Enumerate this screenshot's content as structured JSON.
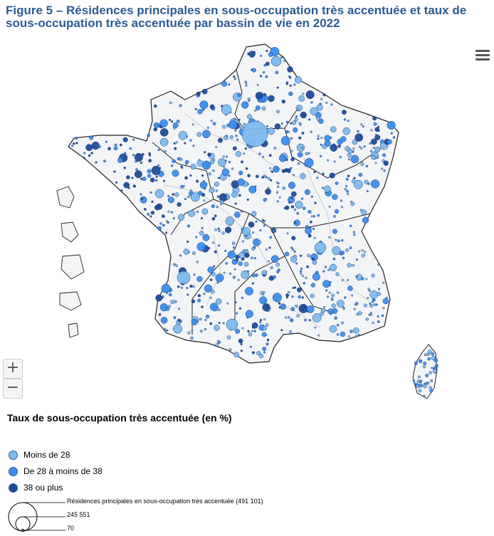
{
  "title": "Figure 5 – Résidences principales en sous-occupation très accentuée et taux de sous-occupation très accentuée par bassin de vie en 2022",
  "legend": {
    "title": "Taux de sous-occupation très accentuée (en %)",
    "categories": [
      {
        "label": "Moins de 28",
        "color": "#7dbbf0"
      },
      {
        "label": "De 28 à moins de 38",
        "color": "#3a8ef0"
      },
      {
        "label": "38 ou plus",
        "color": "#1f4b99"
      }
    ],
    "size": {
      "max_label": "Résidences principales en sous-occupation très accentuée (491 101)",
      "mid_label": "245 551",
      "min_label": "70"
    }
  },
  "controls": {
    "zoom_in": "+",
    "zoom_out": "−"
  }
}
